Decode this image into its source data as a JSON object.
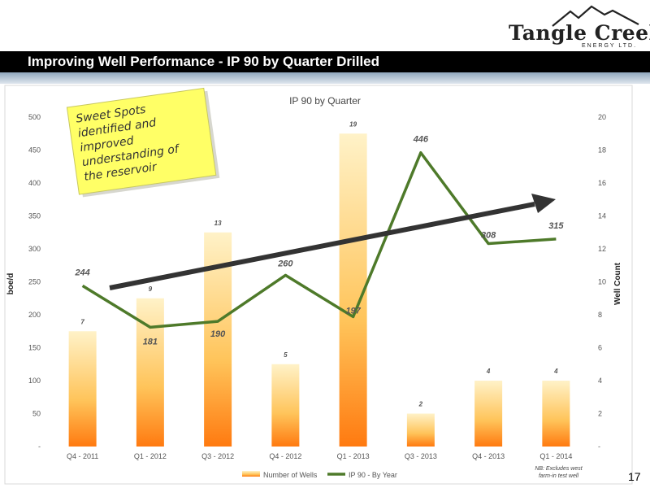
{
  "header": {
    "logo_name": "Tangle Creek",
    "logo_sub": "ENERGY LTD.",
    "slide_title": "Improving Well Performance - IP 90 by Quarter Drilled",
    "page_number": "17"
  },
  "colors": {
    "bar_top": "#fff2c8",
    "bar_bottom": "#ff7a10",
    "line": "#4e7a2a",
    "trend_arrow": "#333333",
    "sticky_note": "#ffff66"
  },
  "chart_data": {
    "type": "bar",
    "title": "IP 90 by Quarter",
    "categories": [
      "Q4 - 2011",
      "Q1 - 2012",
      "Q3 - 2012",
      "Q4 - 2012",
      "Q1 - 2013",
      "Q3 - 2013",
      "Q4 - 2013",
      "Q1 - 2014"
    ],
    "series": [
      {
        "name": "Number of Wells",
        "type": "bar",
        "axis": "right",
        "values": [
          7,
          9,
          13,
          5,
          19,
          2,
          4,
          4
        ]
      },
      {
        "name": "IP 90 - By Year",
        "type": "line",
        "axis": "left",
        "values": [
          244,
          181,
          190,
          260,
          197,
          446,
          308,
          315
        ]
      }
    ],
    "ylabel": "boe/d",
    "y2label": "Well Count",
    "ylim": [
      0,
      500
    ],
    "y2lim": [
      0,
      20
    ],
    "y_ticks": [
      "-",
      "50",
      "100",
      "150",
      "200",
      "250",
      "300",
      "350",
      "400",
      "450",
      "500"
    ],
    "y2_ticks": [
      "-",
      "2",
      "4",
      "6",
      "8",
      "10",
      "12",
      "14",
      "16",
      "18",
      "20"
    ],
    "legend_position": "bottom",
    "grid": false,
    "annotation": "Sweet Spots identified and improved understanding of the reservoir",
    "footnote": "NB: Excludes west farm-in test well"
  }
}
